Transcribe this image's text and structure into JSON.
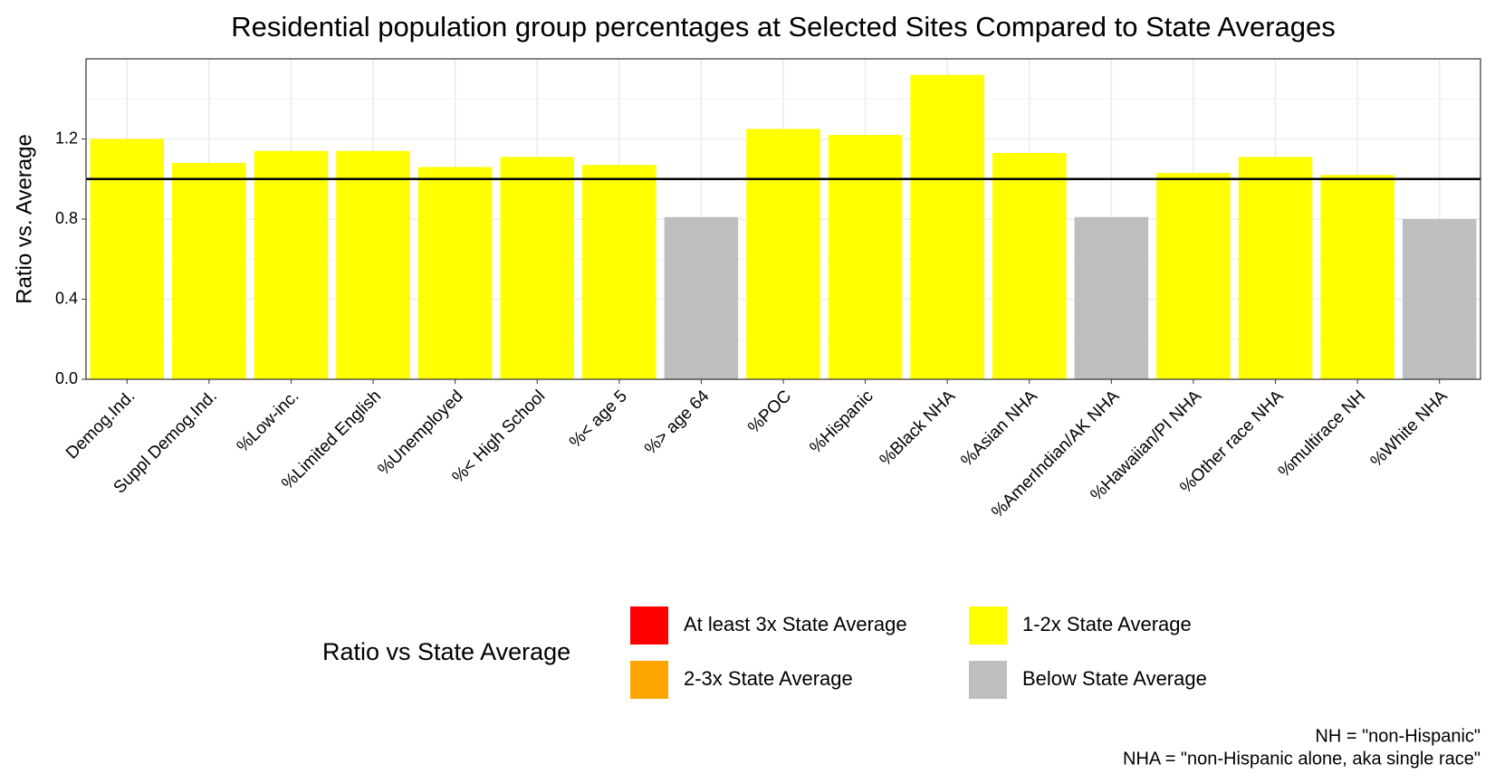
{
  "chart_data": {
    "type": "bar",
    "title": "Residential population group percentages at Selected Sites Compared to State Averages",
    "y_label": "Ratio vs. Average",
    "categories": [
      "Demog.Ind.",
      "Suppl Demog.Ind.",
      "%Low-inc.",
      "%Limited English",
      "%Unemployed",
      "%< High School",
      "%< age 5",
      "%> age 64",
      "%POC",
      "%Hispanic",
      "%Black NHA",
      "%Asian NHA",
      "%AmerIndian/AK NHA",
      "%Hawaiian/PI NHA",
      "%Other race NHA",
      "%multirace NH",
      "%White NHA"
    ],
    "values": [
      1.2,
      1.08,
      1.14,
      1.14,
      1.06,
      1.11,
      1.07,
      0.81,
      1.25,
      1.22,
      1.52,
      1.13,
      0.81,
      1.03,
      1.11,
      1.02,
      0.8
    ],
    "colors": [
      "#ffff00",
      "#ffff00",
      "#ffff00",
      "#ffff00",
      "#ffff00",
      "#ffff00",
      "#ffff00",
      "#bebebe",
      "#ffff00",
      "#ffff00",
      "#ffff00",
      "#ffff00",
      "#bebebe",
      "#ffff00",
      "#ffff00",
      "#ffff00",
      "#bebebe"
    ],
    "ylim": [
      0,
      1.6
    ],
    "yticks": [
      {
        "value": 0,
        "label": "0.0"
      },
      0.4,
      0.8,
      1.2
    ],
    "minor_yticks": [
      0.2,
      0.6,
      1.0,
      1.4
    ],
    "grid": true,
    "reference_line": 1,
    "legend": {
      "title": "Ratio vs State Average",
      "position": "bottom",
      "items": [
        {
          "name": "At least 3x State Average",
          "color": "#ff0000"
        },
        {
          "name": "2-3x State Average",
          "color": "#ffa500"
        },
        {
          "name": "1-2x State Average",
          "color": "#ffff00"
        },
        {
          "name": "Below State Average",
          "color": "#bebebe"
        }
      ]
    },
    "captions": [
      "NH = \"non-Hispanic\"",
      "NHA = \"non-Hispanic alone, aka single race\""
    ]
  }
}
